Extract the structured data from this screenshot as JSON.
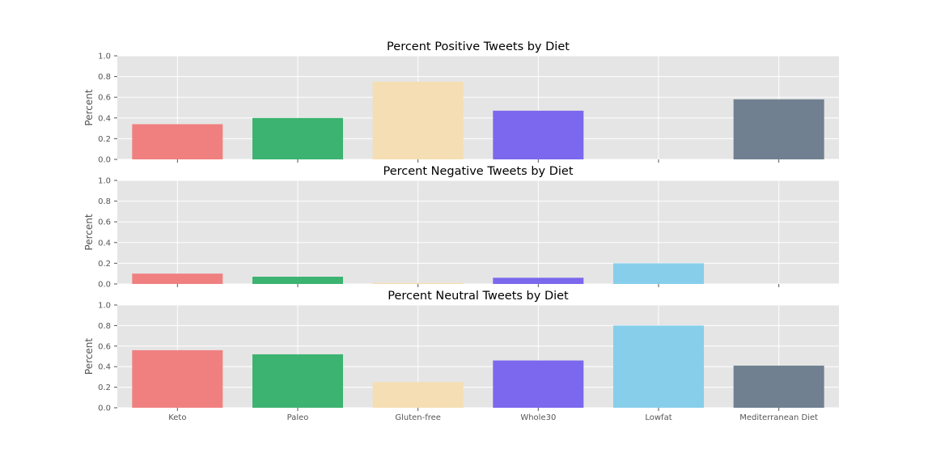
{
  "chart_data": [
    {
      "type": "bar",
      "title": "Percent Positive Tweets by Diet",
      "ylabel": "Percent",
      "xlabel": "",
      "ylim": [
        0,
        1.0
      ],
      "yticks": [
        "0.0",
        "0.2",
        "0.4",
        "0.6",
        "0.8",
        "1.0"
      ],
      "categories": [
        "Keto",
        "Paleo",
        "Gluten-free",
        "Whole30",
        "Lowfat",
        "Mediterranean Diet"
      ],
      "values": [
        0.34,
        0.4,
        0.75,
        0.47,
        0.0,
        0.58
      ],
      "show_xticklabels": false,
      "grid": true
    },
    {
      "type": "bar",
      "title": "Percent Negative Tweets by Diet",
      "ylabel": "Percent",
      "xlabel": "",
      "ylim": [
        0,
        1.0
      ],
      "yticks": [
        "0.0",
        "0.2",
        "0.4",
        "0.6",
        "0.8",
        "1.0"
      ],
      "categories": [
        "Keto",
        "Paleo",
        "Gluten-free",
        "Whole30",
        "Lowfat",
        "Mediterranean Diet"
      ],
      "values": [
        0.1,
        0.07,
        0.01,
        0.06,
        0.2,
        0.0
      ],
      "show_xticklabels": false,
      "grid": true
    },
    {
      "type": "bar",
      "title": "Percent Neutral Tweets by Diet",
      "ylabel": "Percent",
      "xlabel": "",
      "ylim": [
        0,
        1.0
      ],
      "yticks": [
        "0.0",
        "0.2",
        "0.4",
        "0.6",
        "0.8",
        "1.0"
      ],
      "categories": [
        "Keto",
        "Paleo",
        "Gluten-free",
        "Whole30",
        "Lowfat",
        "Mediterranean Diet"
      ],
      "values": [
        0.56,
        0.52,
        0.25,
        0.46,
        0.8,
        0.41
      ],
      "show_xticklabels": true,
      "grid": true
    }
  ],
  "colors": {
    "bars": [
      "#f08080",
      "#3cb371",
      "#f5deb3",
      "#7b68ee",
      "#87ceeb",
      "#708090"
    ],
    "plot_background": "#e5e5e5",
    "grid": "#ffffff"
  }
}
